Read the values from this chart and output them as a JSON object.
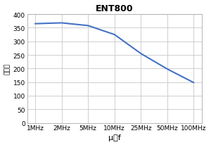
{
  "title": "ENT800",
  "xlabel": "μ－f",
  "ylabel": "磁导率",
  "x_labels": [
    "1MHz",
    "2MHz",
    "5MHz",
    "10MHz",
    "25MHz",
    "50MHz",
    "100MHz"
  ],
  "x_positions": [
    0,
    1,
    2,
    3,
    4,
    5,
    6
  ],
  "y_values": [
    365,
    368,
    358,
    325,
    255,
    198,
    148
  ],
  "ylim": [
    0,
    400
  ],
  "yticks": [
    0,
    50,
    100,
    150,
    200,
    250,
    300,
    350,
    400
  ],
  "line_color": "#4472C4",
  "line_width": 1.5,
  "grid_color": "#C8C8C8",
  "bg_color": "#FFFFFF",
  "plot_bg_color": "#FFFFFF",
  "title_fontsize": 9,
  "axis_fontsize": 6.5,
  "label_fontsize": 8
}
